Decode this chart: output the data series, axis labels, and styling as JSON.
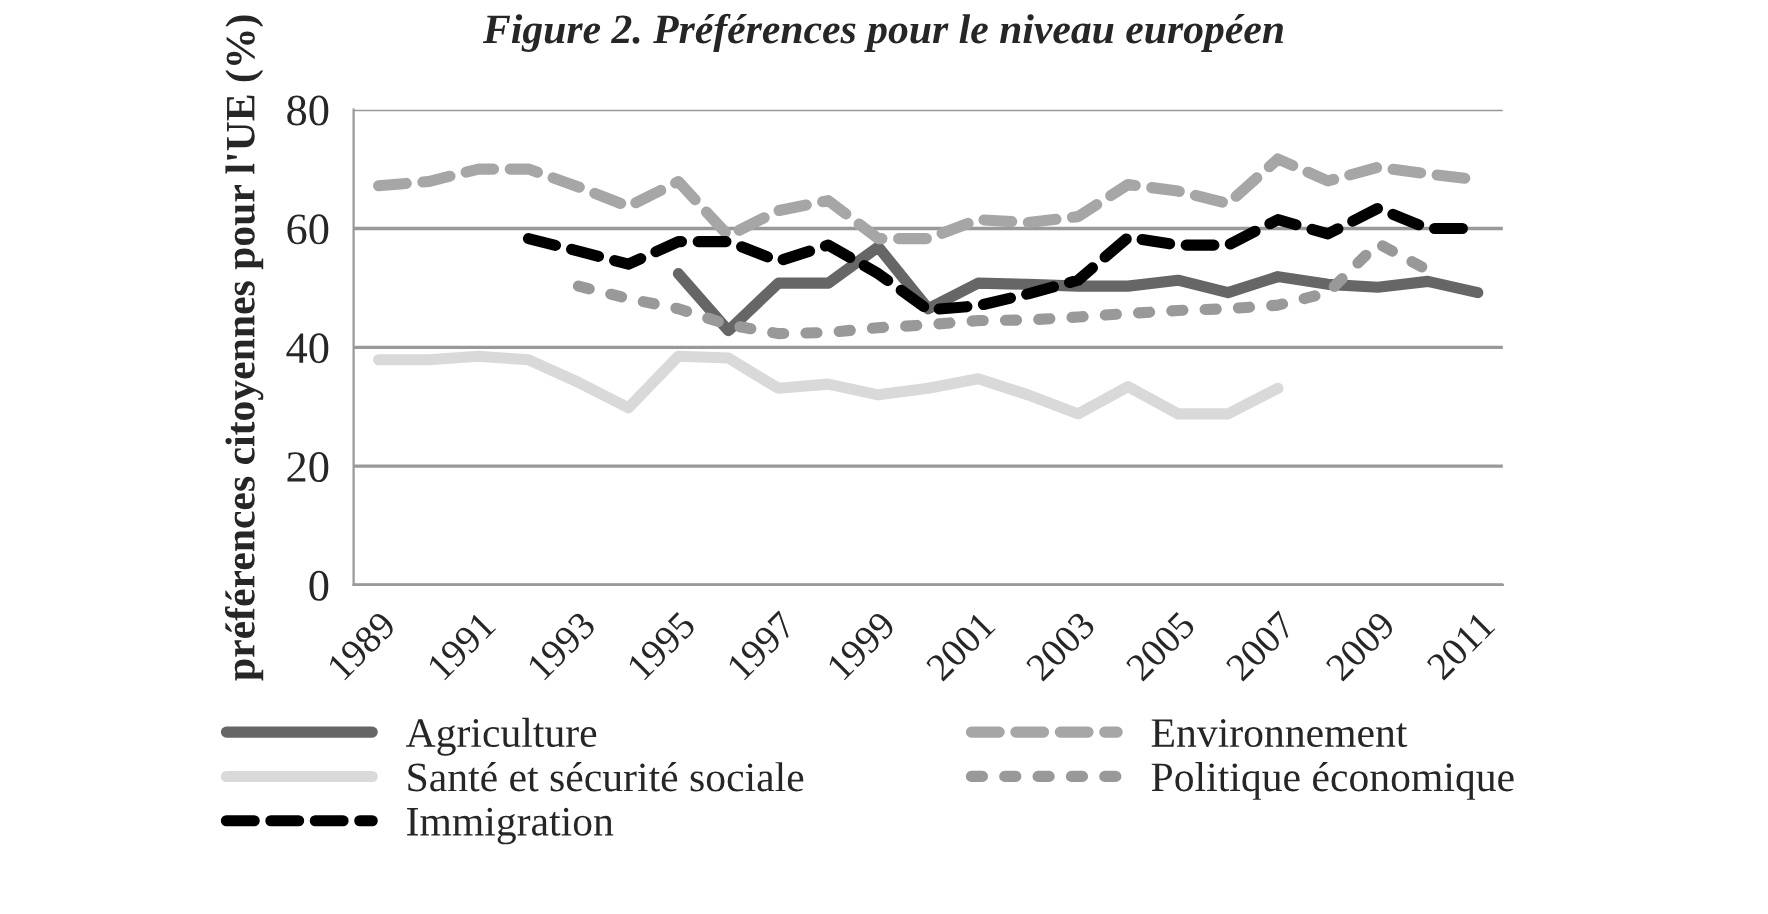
{
  "chart_data": {
    "type": "line",
    "title": "Figure 2. Préférences pour le niveau européen",
    "ylabel": "préférences citoyennes pour l'UE (%)",
    "categories": [
      "1989",
      null,
      "1991",
      null,
      "1993",
      null,
      "1995",
      null,
      "1997",
      null,
      "1999",
      null,
      "2001",
      null,
      "2003",
      null,
      "2005",
      null,
      "2007",
      null,
      "2009",
      null,
      "2011"
    ],
    "series": [
      {
        "name": "Agriculture",
        "color": "#666666",
        "line_style": "solid",
        "values": [
          null,
          null,
          null,
          null,
          null,
          null,
          52.4,
          42.8,
          50.8,
          50.8,
          56.9,
          46.5,
          50.8,
          50.6,
          50.3,
          50.3,
          51.3,
          49.2,
          51.9,
          50.6,
          50.1,
          51.1,
          49.2
        ]
      },
      {
        "name": "Environnement",
        "color": "#a6a6a6",
        "line_style": "dashed",
        "values": [
          67.2,
          67.9,
          70,
          70,
          67,
          63.7,
          67.9,
          58.8,
          63,
          64.7,
          58.3,
          58.3,
          61.5,
          61,
          62,
          67.4,
          66.3,
          64.2,
          71.7,
          68,
          70.3,
          69.2,
          68.2
        ]
      },
      {
        "name": "Santé et sécurité sociale",
        "color": "#d9d9d9",
        "line_style": "solid",
        "values": [
          37.9,
          37.9,
          38.5,
          37.9,
          34.1,
          29.8,
          38.5,
          38.2,
          33.1,
          33.8,
          32,
          33.1,
          34.7,
          32,
          28.8,
          33.4,
          28.8,
          28.8,
          33.1,
          null,
          null,
          null,
          null
        ]
      },
      {
        "name": "Politique économique",
        "color": "#999999",
        "line_style": "dotted",
        "values": [
          null,
          null,
          null,
          null,
          50.3,
          48.2,
          46.5,
          43.8,
          42.3,
          42.5,
          43.3,
          43.8,
          44.5,
          44.6,
          45.1,
          45.7,
          46.2,
          46.5,
          47.1,
          49.2,
          57.5,
          53,
          null
        ]
      },
      {
        "name": "Immigration",
        "color": "#000000",
        "line_style": "dashed",
        "values": [
          null,
          null,
          null,
          58.3,
          56.2,
          54,
          57.8,
          57.8,
          54.5,
          57.2,
          52.4,
          46.3,
          47,
          49,
          51.3,
          58.5,
          57.2,
          57.2,
          61.5,
          59.1,
          63.4,
          60,
          60
        ]
      }
    ],
    "ylim": [
      0,
      80
    ],
    "yticks": [
      0,
      20,
      40,
      60,
      80
    ],
    "grid": "y",
    "legend": "bottom",
    "marker": "none"
  }
}
